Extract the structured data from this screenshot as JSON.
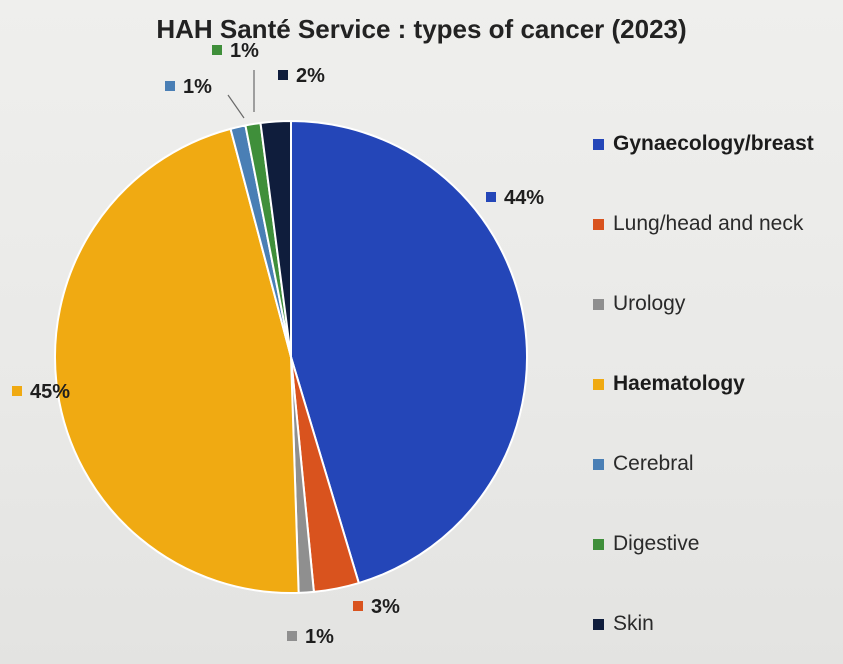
{
  "chart_data": {
    "type": "pie",
    "title": "HAH Santé Service : types of cancer (2023)",
    "legend_position": "right",
    "slices": [
      {
        "label": "Gynaecology/breast",
        "value": 44,
        "display": "44%",
        "color": "#2446b8",
        "bold": true
      },
      {
        "label": "Lung/head and neck",
        "value": 3,
        "display": "3%",
        "color": "#d9531e",
        "bold": false
      },
      {
        "label": "Urology",
        "value": 1,
        "display": "1%",
        "color": "#8f8f8f",
        "bold": false
      },
      {
        "label": "Haematology",
        "value": 45,
        "display": "45%",
        "color": "#f0aa12",
        "bold": true
      },
      {
        "label": "Cerebral",
        "value": 1,
        "display": "1%",
        "color": "#4a7fb5",
        "bold": false
      },
      {
        "label": "Digestive",
        "value": 1,
        "display": "1%",
        "color": "#3f8f3a",
        "bold": false
      },
      {
        "label": "Skin",
        "value": 2,
        "display": "2%",
        "color": "#0f1d3c",
        "bold": false
      }
    ]
  }
}
